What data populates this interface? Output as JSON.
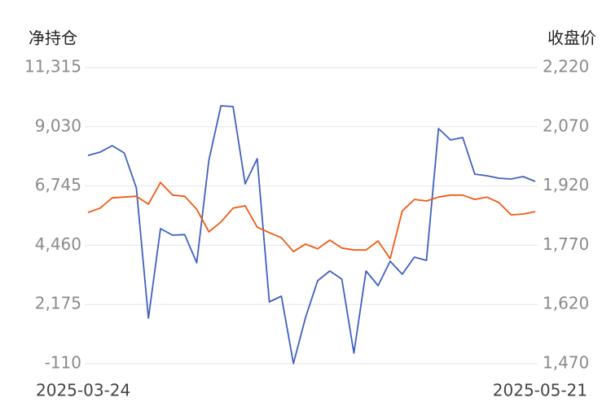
{
  "chart_data": {
    "type": "line",
    "ylabel": "净持仓",
    "y2label": "收盘价",
    "categories": [
      "2025-03-24",
      null,
      null,
      null,
      null,
      null,
      null,
      null,
      null,
      null,
      null,
      null,
      null,
      null,
      null,
      null,
      null,
      null,
      null,
      null,
      null,
      null,
      null,
      null,
      null,
      null,
      null,
      null,
      null,
      null,
      null,
      null,
      null,
      null,
      null,
      null,
      null,
      "2025-05-21"
    ],
    "series": [
      {
        "color": "#4060c0",
        "axis": "y",
        "values": [
          7925,
          8051,
          8302,
          8019,
          6670,
          1648,
          5100,
          4849,
          4870,
          3782,
          7737,
          9840,
          9808,
          6827,
          7800,
          2276,
          2495,
          -100,
          1679,
          3092,
          3468,
          3154,
          298,
          3468,
          2903,
          3845,
          3343,
          4002,
          3876,
          8961,
          8522,
          8616,
          7203,
          7141,
          7046,
          7015,
          7109,
          6921
        ]
      },
      {
        "color": "#f05a14",
        "axis": "y2",
        "values": [
          1853,
          1864,
          1890,
          1892,
          1894,
          1874,
          1929,
          1897,
          1894,
          1861,
          1804,
          1829,
          1864,
          1870,
          1816,
          1802,
          1789,
          1754,
          1773,
          1761,
          1783,
          1763,
          1758,
          1758,
          1781,
          1736,
          1857,
          1886,
          1882,
          1892,
          1897,
          1897,
          1886,
          1892,
          1878,
          1847,
          1849,
          1855
        ]
      }
    ],
    "ylim": [
      -110,
      11315
    ],
    "yticks": [
      -110,
      {
        "value": 2175,
        "label": "2,175"
      },
      {
        "value": 4460,
        "label": "4,460"
      },
      {
        "value": 6745,
        "label": "6,745"
      },
      {
        "value": 9030,
        "label": "9,030"
      },
      {
        "value": 11315,
        "label": "11,315"
      }
    ],
    "y2lim": [
      1470,
      2220
    ],
    "y2ticks": [
      {
        "value": 1470,
        "label": "1,470"
      },
      {
        "value": 1620,
        "label": "1,620"
      },
      {
        "value": 1770,
        "label": "1,770"
      },
      {
        "value": 1920,
        "label": "1,920"
      },
      {
        "value": 2070,
        "label": "2,070"
      },
      {
        "value": 2220,
        "label": "2,220"
      }
    ],
    "grid": true
  }
}
